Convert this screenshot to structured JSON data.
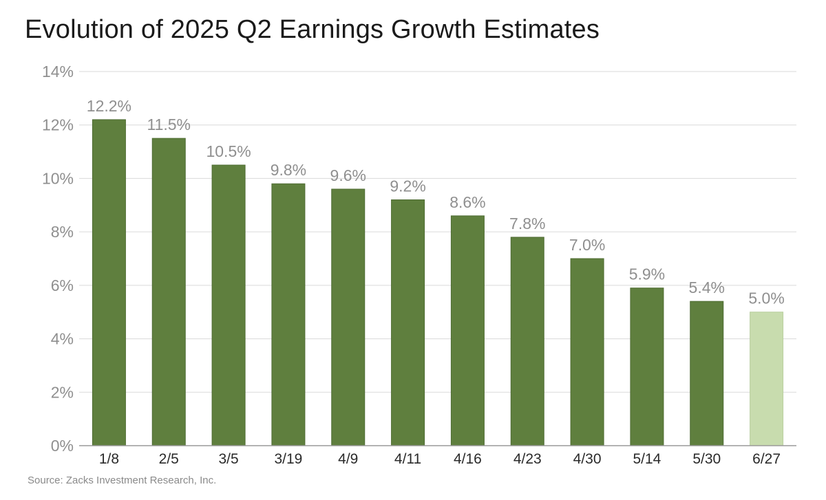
{
  "title": "Evolution of 2025 Q2 Earnings Growth Estimates",
  "source": "Source: Zacks Investment Research, Inc.",
  "colors": {
    "bar": "#5f7f3e",
    "bar_highlight": "#c8dcae",
    "grid": "#d9d9d9",
    "axis": "#9a9a9a"
  },
  "chart_data": {
    "type": "bar",
    "title": "Evolution of 2025 Q2 Earnings Growth Estimates",
    "xlabel": "",
    "ylabel": "",
    "categories": [
      "1/8",
      "2/5",
      "3/5",
      "3/19",
      "4/9",
      "4/11",
      "4/16",
      "4/23",
      "4/30",
      "5/14",
      "5/30",
      "6/27"
    ],
    "values": [
      12.2,
      11.5,
      10.5,
      9.8,
      9.6,
      9.2,
      8.6,
      7.8,
      7.0,
      5.9,
      5.4,
      5.0
    ],
    "data_labels": [
      "12.2%",
      "11.5%",
      "10.5%",
      "9.8%",
      "9.6%",
      "9.2%",
      "8.6%",
      "7.8%",
      "7.0%",
      "5.9%",
      "5.4%",
      "5.0%"
    ],
    "highlight_index": 11,
    "ylim": [
      0,
      14
    ],
    "yticks": [
      0,
      2,
      4,
      6,
      8,
      10,
      12,
      14
    ],
    "ytick_labels": [
      "0%",
      "2%",
      "4%",
      "6%",
      "8%",
      "10%",
      "12%",
      "14%"
    ],
    "grid": true,
    "legend": "none"
  }
}
